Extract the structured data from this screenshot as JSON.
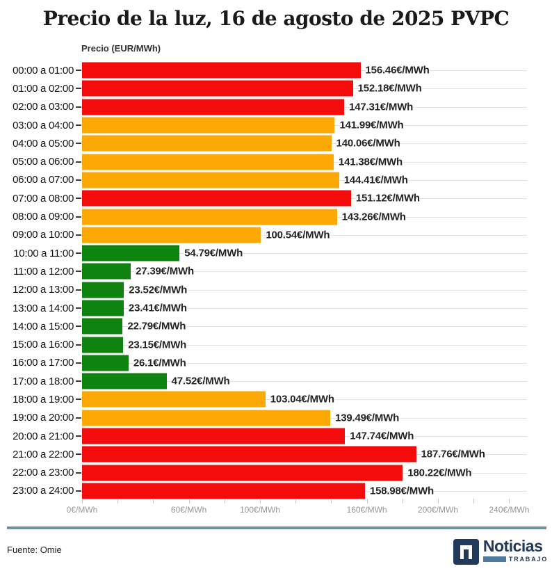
{
  "title": "Precio de la luz, 16 de agosto de 2025 PVPC",
  "axis_title": "Precio (EUR/MWh)",
  "chart_data": {
    "type": "bar",
    "orientation": "horizontal",
    "title": "Precio de la luz, 16 de agosto de 2025 PVPC",
    "ylabel": "Precio (EUR/MWh)",
    "unit": "€/MWh",
    "categories": [
      "00:00 a 01:00",
      "01:00 a 02:00",
      "02:00 a 03:00",
      "03:00 a 04:00",
      "04:00 a 05:00",
      "05:00 a 06:00",
      "06:00 a 07:00",
      "07:00 a 08:00",
      "08:00 a 09:00",
      "09:00 a 10:00",
      "10:00 a 11:00",
      "11:00 a 12:00",
      "12:00 a 13:00",
      "13:00 a 14:00",
      "14:00 a 15:00",
      "15:00 a 16:00",
      "16:00 a 17:00",
      "17:00 a 18:00",
      "18:00 a 19:00",
      "19:00 a 20:00",
      "20:00 a 21:00",
      "21:00 a 22:00",
      "22:00 a 23:00",
      "23:00 a 24:00"
    ],
    "values": [
      156.46,
      152.18,
      147.31,
      141.99,
      140.06,
      141.38,
      144.41,
      151.12,
      143.26,
      100.54,
      54.79,
      27.39,
      23.52,
      23.41,
      22.79,
      23.15,
      26.1,
      47.52,
      103.04,
      139.49,
      147.74,
      187.76,
      180.22,
      158.98
    ],
    "value_labels": [
      "156.46€/MWh",
      "152.18€/MWh",
      "147.31€/MWh",
      "141.99€/MWh",
      "140.06€/MWh",
      "141.38€/MWh",
      "144.41€/MWh",
      "151.12€/MWh",
      "143.26€/MWh",
      "100.54€/MWh",
      "54.79€/MWh",
      "27.39€/MWh",
      "23.52€/MWh",
      "23.41€/MWh",
      "22.79€/MWh",
      "23.15€/MWh",
      "26.1€/MWh",
      "47.52€/MWh",
      "103.04€/MWh",
      "139.49€/MWh",
      "147.74€/MWh",
      "187.76€/MWh",
      "180.22€/MWh",
      "158.98€/MWh"
    ],
    "bar_colors": [
      "red",
      "red",
      "red",
      "orange",
      "orange",
      "orange",
      "orange",
      "red",
      "orange",
      "orange",
      "green",
      "green",
      "green",
      "green",
      "green",
      "green",
      "green",
      "green",
      "orange",
      "orange",
      "red",
      "red",
      "red",
      "red"
    ],
    "xlim": [
      0,
      250
    ],
    "x_ticks_every": 20,
    "x_tick_max": 240,
    "x_tick_labels": [
      "0€/MWh",
      "60€/MWh",
      "100€/MWh",
      "160€/MWh",
      "200€/MWh",
      "240€/MWh"
    ],
    "x_tick_label_values": [
      0,
      60,
      100,
      160,
      200,
      240
    ],
    "grid": "horizontal row lines",
    "legend": "none"
  },
  "colors": {
    "bar_red": "#f40b0b",
    "bar_orange": "#fca905",
    "bar_green": "#0f830f",
    "gridline": "#e3e3e3",
    "axis_label": "#979797",
    "divider_blue": "#7191a7",
    "logo_navy": "#21395a",
    "logo_steel": "#4f7aa0"
  },
  "footer": {
    "source": "Fuente: Omie",
    "logo": {
      "brand": "Noticias",
      "sub": "TRABAJO"
    }
  }
}
